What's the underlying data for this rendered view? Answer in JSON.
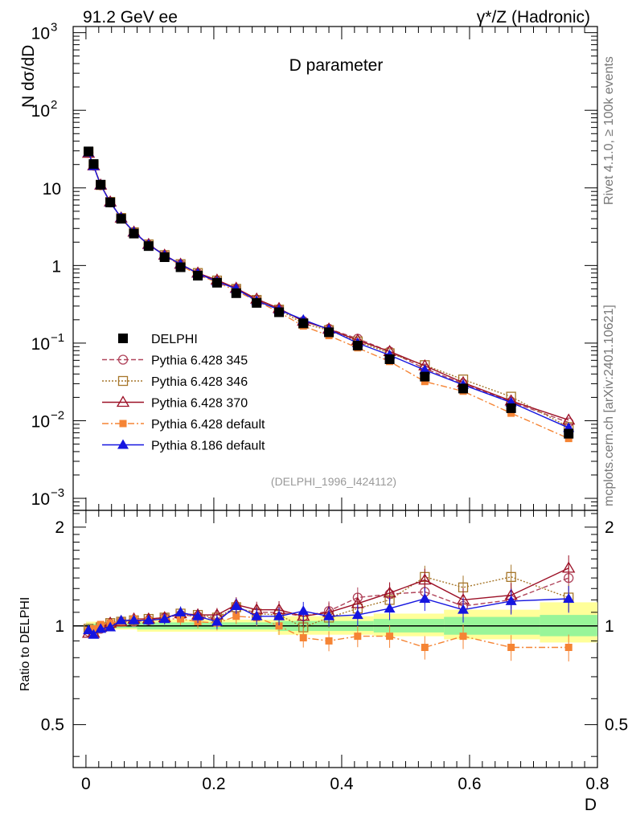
{
  "header": {
    "left_label": "91.2 GeV ee",
    "right_label": "γ*/Z (Hadronic)"
  },
  "side_labels": {
    "rivet": "Rivet 4.1.0, ≥ 100k events",
    "mcplots": "mcplots.cern.ch [arXiv:2401.10621]"
  },
  "colors": {
    "DELPHI": "#000000",
    "p345": "#b0455c",
    "p346": "#a6762a",
    "p370": "#9c1026",
    "p6def": "#f58434",
    "p8def": "#1515e0",
    "band_yellow": "#ffff99",
    "band_green": "#99f599"
  },
  "chart_data": {
    "type": "line",
    "title": "D parameter",
    "watermark": "(DELPHI_1996_I424112)",
    "xlabel": "D",
    "ylabel": "N  dσ/dD",
    "ratio_ylabel": "Ratio to DELPHI",
    "xlim": [
      -0.02,
      0.8
    ],
    "ylim": [
      0.0007,
      1200
    ],
    "ratio_ylim": [
      0.37,
      2.25
    ],
    "x_ticks": [
      "0",
      "0.2",
      "0.4",
      "0.6",
      "0.8"
    ],
    "x_tick_values": [
      0,
      0.2,
      0.4,
      0.6,
      0.8
    ],
    "y_ticks": [
      {
        "base": "10",
        "exp": "−3",
        "value": 0.001
      },
      {
        "base": "10",
        "exp": "−2",
        "value": 0.01
      },
      {
        "base": "10",
        "exp": "−1",
        "value": 0.1
      },
      {
        "base": "1",
        "exp": "",
        "value": 1
      },
      {
        "base": "10",
        "exp": "",
        "value": 10
      },
      {
        "base": "10",
        "exp": "2",
        "value": 100
      },
      {
        "base": "10",
        "exp": "3",
        "value": 1000
      }
    ],
    "ratio_ticks": [
      {
        "label": "0.5",
        "value": 0.5
      },
      {
        "label": "1",
        "value": 1
      },
      {
        "label": "2",
        "value": 2
      }
    ],
    "x": [
      0.004,
      0.012,
      0.023,
      0.038,
      0.055,
      0.075,
      0.098,
      0.123,
      0.148,
      0.175,
      0.205,
      0.235,
      0.267,
      0.302,
      0.34,
      0.38,
      0.425,
      0.475,
      0.53,
      0.59,
      0.665,
      0.755
    ],
    "xerr": [
      [
        0,
        0.008
      ],
      [
        0.008,
        0.016
      ],
      [
        0.016,
        0.03
      ],
      [
        0.03,
        0.045
      ],
      [
        0.045,
        0.065
      ],
      [
        0.065,
        0.085
      ],
      [
        0.085,
        0.11
      ],
      [
        0.11,
        0.135
      ],
      [
        0.135,
        0.16
      ],
      [
        0.16,
        0.19
      ],
      [
        0.19,
        0.22
      ],
      [
        0.22,
        0.25
      ],
      [
        0.25,
        0.285
      ],
      [
        0.285,
        0.32
      ],
      [
        0.32,
        0.36
      ],
      [
        0.36,
        0.4
      ],
      [
        0.4,
        0.45
      ],
      [
        0.45,
        0.5
      ],
      [
        0.5,
        0.56
      ],
      [
        0.56,
        0.62
      ],
      [
        0.62,
        0.71
      ],
      [
        0.71,
        0.8
      ]
    ],
    "series": [
      {
        "key": "DELPHI",
        "name": "DELPHI",
        "values": [
          29.5,
          20.3,
          11.0,
          6.5,
          4.0,
          2.58,
          1.78,
          1.28,
          0.95,
          0.74,
          0.6,
          0.44,
          0.33,
          0.25,
          0.18,
          0.138,
          0.093,
          0.062,
          0.037,
          0.026,
          0.0145,
          0.0068
        ],
        "ratio": [
          1,
          1,
          1,
          1,
          1,
          1,
          1,
          1,
          1,
          1,
          1,
          1,
          1,
          1,
          1,
          1,
          1,
          1,
          1,
          1,
          1,
          1
        ],
        "marker": "square-filled",
        "dash": ""
      },
      {
        "key": "p345",
        "name": "Pythia 6.428 345",
        "values": [
          28.3,
          19.3,
          10.8,
          6.5,
          4.1,
          2.66,
          1.85,
          1.35,
          1.03,
          0.79,
          0.63,
          0.5,
          0.36,
          0.275,
          0.192,
          0.153,
          0.114,
          0.078,
          0.047,
          0.03,
          0.0175,
          0.0095
        ],
        "ratio": [
          0.96,
          0.95,
          0.98,
          1.0,
          1.03,
          1.03,
          1.04,
          1.06,
          1.08,
          1.07,
          1.05,
          1.13,
          1.1,
          1.1,
          1.07,
          1.11,
          1.22,
          1.25,
          1.27,
          1.15,
          1.2,
          1.4
        ],
        "marker": "circle-open",
        "dash": "6,3"
      },
      {
        "key": "p346",
        "name": "Pythia 6.428 346",
        "values": [
          28.9,
          19.5,
          10.9,
          6.6,
          4.1,
          2.68,
          1.87,
          1.36,
          1.04,
          0.8,
          0.64,
          0.5,
          0.36,
          0.27,
          0.178,
          0.147,
          0.105,
          0.074,
          0.052,
          0.034,
          0.0204,
          0.0083
        ],
        "ratio": [
          0.98,
          0.96,
          0.99,
          1.02,
          1.03,
          1.04,
          1.05,
          1.06,
          1.09,
          1.08,
          1.06,
          1.14,
          1.09,
          1.08,
          0.99,
          1.06,
          1.13,
          1.2,
          1.41,
          1.31,
          1.41,
          1.22
        ],
        "marker": "square-open",
        "dash": "2,2"
      },
      {
        "key": "p370",
        "name": "Pythia 6.428 370",
        "values": [
          28.0,
          19.3,
          10.9,
          6.6,
          4.1,
          2.7,
          1.87,
          1.36,
          1.04,
          0.8,
          0.65,
          0.51,
          0.37,
          0.28,
          0.192,
          0.152,
          0.109,
          0.078,
          0.051,
          0.031,
          0.018,
          0.0102
        ],
        "ratio": [
          0.95,
          0.95,
          0.99,
          1.02,
          1.03,
          1.05,
          1.05,
          1.06,
          1.09,
          1.08,
          1.08,
          1.16,
          1.12,
          1.12,
          1.07,
          1.1,
          1.17,
          1.26,
          1.38,
          1.2,
          1.24,
          1.5
        ],
        "marker": "triangle-open",
        "dash": ""
      },
      {
        "key": "p6def",
        "name": "Pythia 6.428 default",
        "values": [
          28.6,
          20.0,
          11.1,
          6.6,
          4.1,
          2.7,
          1.85,
          1.34,
          1.0,
          0.76,
          0.61,
          0.47,
          0.35,
          0.25,
          0.166,
          0.125,
          0.087,
          0.058,
          0.032,
          0.024,
          0.0125,
          0.0059
        ],
        "ratio": [
          0.97,
          0.98,
          1.01,
          1.02,
          1.03,
          1.05,
          1.04,
          1.05,
          1.05,
          1.03,
          1.02,
          1.07,
          1.06,
          1.0,
          0.92,
          0.9,
          0.93,
          0.93,
          0.86,
          0.93,
          0.86,
          0.86
        ],
        "marker": "square-small",
        "dash": "8,3,2,3"
      },
      {
        "key": "p8def",
        "name": "Pythia 8.186 default",
        "values": [
          28.6,
          19.1,
          10.9,
          6.5,
          4.15,
          2.7,
          1.85,
          1.35,
          1.04,
          0.79,
          0.62,
          0.5,
          0.35,
          0.27,
          0.2,
          0.15,
          0.1,
          0.07,
          0.045,
          0.029,
          0.0172,
          0.0081
        ],
        "ratio": [
          0.97,
          0.94,
          0.98,
          0.99,
          1.04,
          1.04,
          1.04,
          1.05,
          1.1,
          1.07,
          1.03,
          1.15,
          1.07,
          1.07,
          1.11,
          1.07,
          1.08,
          1.13,
          1.21,
          1.12,
          1.19,
          1.21
        ],
        "marker": "triangle-filled",
        "dash": ""
      }
    ],
    "band_green": [
      [
        0.0,
        0.08,
        0.985,
        1.015
      ],
      [
        0.08,
        0.3,
        0.975,
        1.025
      ],
      [
        0.3,
        0.45,
        0.965,
        1.035
      ],
      [
        0.45,
        0.56,
        0.955,
        1.05
      ],
      [
        0.56,
        0.71,
        0.94,
        1.065
      ],
      [
        0.71,
        0.8,
        0.93,
        1.08
      ]
    ],
    "band_yellow": [
      [
        0.0,
        0.08,
        0.975,
        1.03
      ],
      [
        0.08,
        0.3,
        0.96,
        1.045
      ],
      [
        0.3,
        0.45,
        0.94,
        1.07
      ],
      [
        0.45,
        0.56,
        0.93,
        1.09
      ],
      [
        0.56,
        0.71,
        0.91,
        1.12
      ],
      [
        0.71,
        0.8,
        0.89,
        1.18
      ]
    ]
  }
}
